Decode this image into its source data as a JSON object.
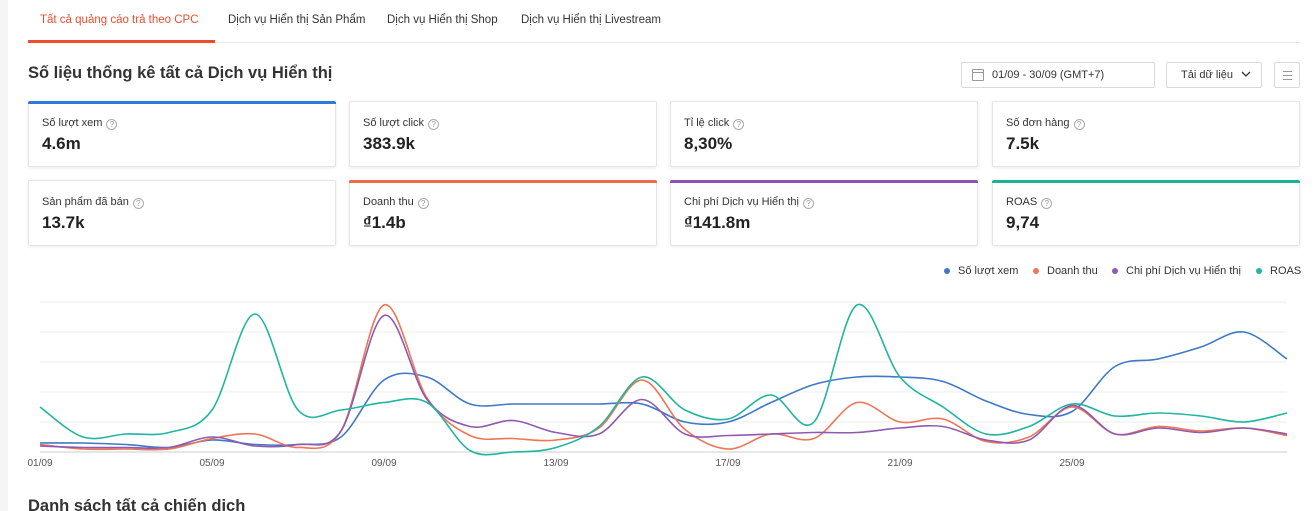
{
  "tabs": [
    {
      "label": "Tất cả quảng cáo trả theo CPC",
      "active": true
    },
    {
      "label": "Dịch vụ Hiển thị Sản Phẩm",
      "active": false
    },
    {
      "label": "Dịch vụ Hiển thị Shop",
      "active": false
    },
    {
      "label": "Dịch vụ Hiển thị Livestream",
      "active": false
    }
  ],
  "header": {
    "title": "Số liệu thống kê tất cả Dịch vụ Hiển thị",
    "date_range": "01/09 - 30/09 (GMT+7)",
    "download_label": "Tải dữ liệu",
    "icons": {
      "date": "calendar-icon",
      "download": "chevron-down-icon",
      "menu": "list-menu-icon"
    }
  },
  "metrics": [
    {
      "label": "Số lượt xem",
      "value": "4.6m",
      "accent": "#2f7ad9"
    },
    {
      "label": "Số lượt click",
      "value": "383.9k",
      "accent": ""
    },
    {
      "label": "Tỉ lệ click",
      "value": "8,30%",
      "accent": ""
    },
    {
      "label": "Số đơn hàng",
      "value": "7.5k",
      "accent": ""
    },
    {
      "label": "Sản phẩm đã bán",
      "value": "13.7k",
      "accent": ""
    },
    {
      "label": "Doanh thu",
      "value": "₫1.4b",
      "accent": "#ee6a48"
    },
    {
      "label": "Chi phí Dịch vụ Hiển thị",
      "value": "₫141.8m",
      "accent": "#8a55b1"
    },
    {
      "label": "ROAS",
      "value": "9,74",
      "accent": "#1ab394"
    }
  ],
  "chart_data": {
    "type": "line",
    "x": [
      "01/09",
      "02/09",
      "03/09",
      "04/09",
      "05/09",
      "06/09",
      "07/09",
      "08/09",
      "09/09",
      "10/09",
      "11/09",
      "12/09",
      "13/09",
      "14/09",
      "15/09",
      "16/09",
      "17/09",
      "18/09",
      "19/09",
      "20/09",
      "21/09",
      "22/09",
      "23/09",
      "24/09",
      "25/09",
      "26/09",
      "27/09",
      "28/09",
      "29/09",
      "30/09"
    ],
    "xtick_labels": [
      "01/09",
      "05/09",
      "09/09",
      "13/09",
      "17/09",
      "21/09",
      "25/09"
    ],
    "ylim": [
      0,
      100
    ],
    "grid": true,
    "legend_position": "top-right",
    "series": [
      {
        "name": "Số lượt xem",
        "color": "#3d79c7",
        "values": [
          6,
          6,
          5,
          3,
          8,
          5,
          5,
          10,
          48,
          50,
          32,
          32,
          32,
          32,
          32,
          20,
          20,
          33,
          45,
          50,
          50,
          47,
          34,
          25,
          27,
          57,
          62,
          70,
          80,
          62
        ]
      },
      {
        "name": "Doanh thu",
        "color": "#ef7555",
        "values": [
          5,
          2,
          2,
          2,
          9,
          12,
          3,
          14,
          98,
          36,
          11,
          9,
          8,
          16,
          48,
          15,
          2,
          12,
          9,
          33,
          20,
          22,
          7,
          10,
          30,
          12,
          17,
          14,
          16,
          11
        ]
      },
      {
        "name": "Chi phí Dịch vụ Hiển thị",
        "color": "#8e5bb0",
        "values": [
          4,
          3,
          3,
          3,
          10,
          4,
          5,
          14,
          91,
          35,
          17,
          21,
          13,
          12,
          35,
          12,
          11,
          12,
          13,
          13,
          16,
          17,
          8,
          8,
          31,
          12,
          16,
          13,
          16,
          12
        ]
      },
      {
        "name": "ROAS",
        "color": "#1fb5a0",
        "values": [
          30,
          10,
          12,
          13,
          28,
          92,
          28,
          28,
          33,
          33,
          1,
          0,
          3,
          17,
          50,
          28,
          22,
          38,
          20,
          98,
          50,
          30,
          12,
          17,
          32,
          24,
          26,
          24,
          20,
          26
        ]
      }
    ]
  },
  "bottom": {
    "title": "Danh sách tất cả chiến dịch"
  }
}
